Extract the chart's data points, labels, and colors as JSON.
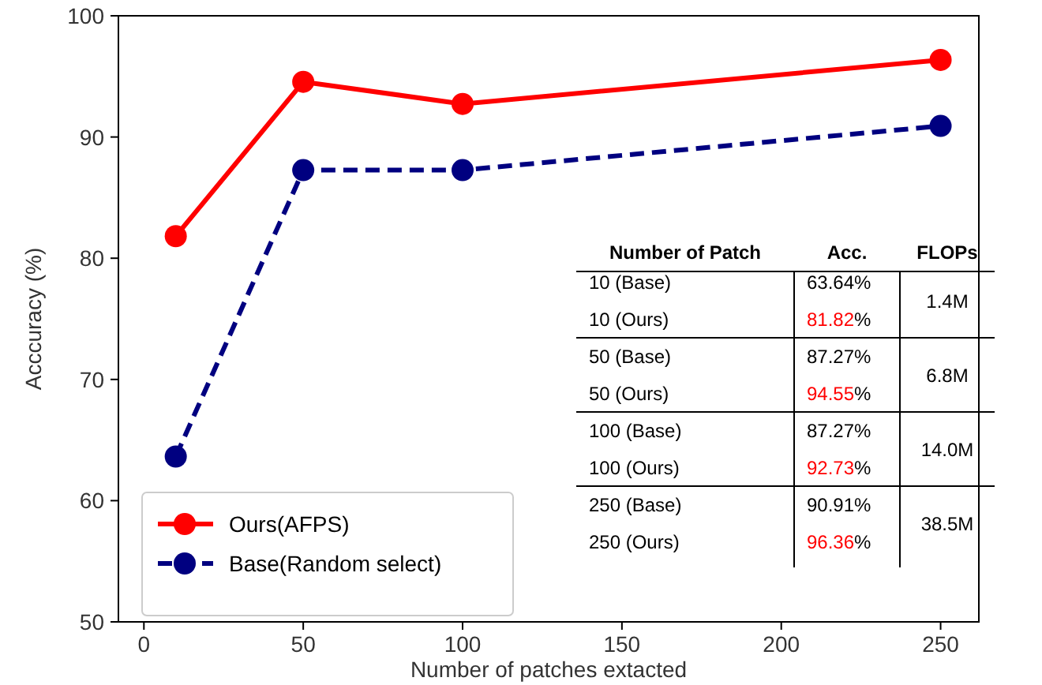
{
  "chart_data": {
    "type": "line",
    "xlabel": "Number of patches extacted",
    "ylabel": "Acccuracy (%)",
    "x": [
      10,
      50,
      100,
      250
    ],
    "series": [
      {
        "name": "Ours(AFPS)",
        "color": "#ff0000",
        "values": [
          81.82,
          94.55,
          92.73,
          96.36
        ],
        "line_style": "solid"
      },
      {
        "name": "Base(Random select)",
        "color": "#000080",
        "values": [
          63.64,
          87.27,
          87.27,
          90.91
        ],
        "line_style": "dashed"
      }
    ],
    "xlim": [
      -8,
      262
    ],
    "xticks": [
      0,
      50,
      100,
      150,
      200,
      250
    ],
    "ylim": [
      50,
      100
    ],
    "yticks": [
      50,
      60,
      70,
      80,
      90,
      100
    ],
    "marker": "circle",
    "legend": "bottom left",
    "grid": false,
    "annotations": [
      "Number of Patch",
      "Acc.",
      "FLOPs",
      "10 (Base)",
      "10 (Ours)",
      "50  (Base)",
      "50  (Ours)",
      "100  (Base)",
      "100  (Ours)",
      "250  (Base)",
      "250  (Ours)",
      "1.4M",
      "6.8M",
      "14.0M",
      "38.5M",
      "63.64%",
      "81.82%",
      "87.27%",
      "94.55%",
      "87.27%",
      "92.73%",
      "90.91%",
      "96.36%"
    ]
  }
}
